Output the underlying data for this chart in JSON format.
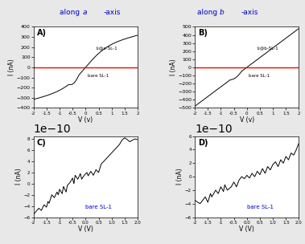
{
  "title_left": "along a-axis",
  "title_right": "along b-axis",
  "title_color": "#0000cc",
  "background_color": "#e8e8e8",
  "panel_bg": "#ffffff",
  "panel_A": {
    "label": "A)",
    "xlabel": "V (v)",
    "ylabel": "I (nA)",
    "xlim": [
      -2.0,
      2.0
    ],
    "ylim": [
      -400,
      400
    ],
    "yticks": [
      -400,
      -300,
      -200,
      -100,
      0,
      100,
      200,
      300,
      400
    ],
    "xticks": [
      -2.0,
      -1.5,
      -1.0,
      -0.5,
      0.0,
      0.5,
      1.0,
      1.5,
      2.0
    ],
    "curve_label": "I₂@a-SL-1",
    "red_line_label": "bare SL-1",
    "red_line_y": 0
  },
  "panel_B": {
    "label": "B)",
    "xlabel": "V (v)",
    "ylabel": "I (nA)",
    "xlim": [
      -2.0,
      2.0
    ],
    "ylim": [
      -500,
      500
    ],
    "yticks": [
      -500,
      -400,
      -300,
      -200,
      -100,
      0,
      100,
      200,
      300,
      400,
      500
    ],
    "xticks": [
      -2.0,
      -1.5,
      -1.0,
      -0.5,
      0.0,
      0.5,
      1.0,
      1.5,
      2.0
    ],
    "curve_label": "I₂@b-SL-1",
    "red_line_label": "bare SL-1",
    "red_line_y": 0
  },
  "panel_C": {
    "label": "C)",
    "xlabel": "V (V)",
    "ylabel": "I (nA)",
    "xlim": [
      -2.0,
      2.0
    ],
    "ylim": [
      -6e-10,
      8.5e-10
    ],
    "yticks": [
      -6e-10,
      -4e-10,
      -2e-10,
      0,
      2e-10,
      4e-10,
      6e-10,
      8e-10
    ],
    "xticks": [
      -2.0,
      -1.5,
      -1.0,
      -0.5,
      0.0,
      0.5,
      1.0,
      1.5,
      2.0
    ],
    "annotation": "bare SL-1",
    "annotation_color": "#0000cc"
  },
  "panel_D": {
    "label": "D)",
    "xlabel": "V (V)",
    "ylabel": "I (nA)",
    "xlim": [
      -2.0,
      2.0
    ],
    "ylim": [
      -6e-10,
      6e-10
    ],
    "yticks": [
      -6e-10,
      -4e-10,
      -2e-10,
      0,
      2e-10,
      4e-10,
      6e-10
    ],
    "xticks": [
      -2.0,
      -1.5,
      -1.0,
      -0.5,
      0.0,
      0.5,
      1.0,
      1.5,
      2.0
    ],
    "annotation": "bare SL-1",
    "annotation_color": "#0000cc"
  }
}
